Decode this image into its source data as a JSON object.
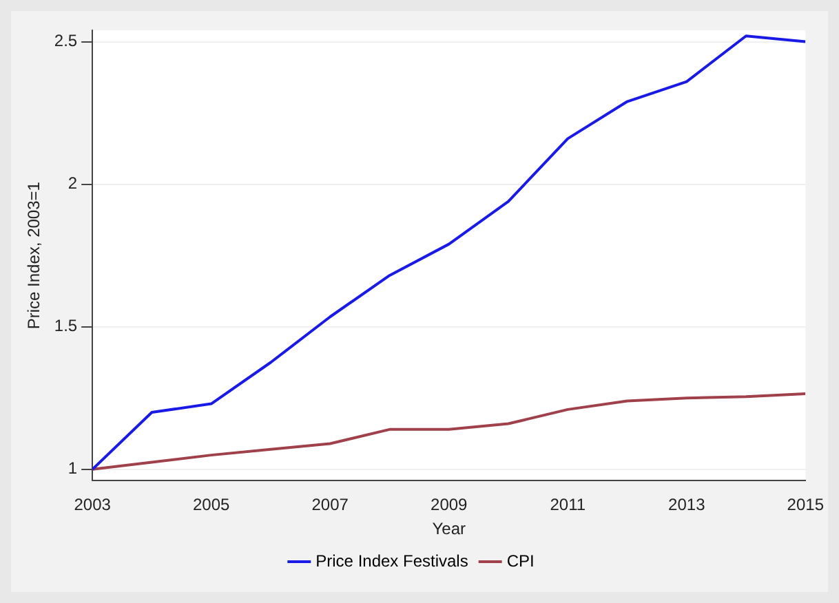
{
  "chart_data": {
    "type": "line",
    "xlabel": "Year",
    "ylabel": "Price Index, 2003=1",
    "x": [
      2003,
      2004,
      2005,
      2006,
      2007,
      2008,
      2009,
      2010,
      2011,
      2012,
      2013,
      2014,
      2015
    ],
    "series": [
      {
        "name": "Price Index Festivals",
        "color": "#1a1ae6",
        "values": [
          1.0,
          1.2,
          1.23,
          1.375,
          1.535,
          1.68,
          1.79,
          1.94,
          2.16,
          2.29,
          2.36,
          2.52,
          2.5
        ]
      },
      {
        "name": "CPI",
        "color": "#a0404a",
        "values": [
          1.0,
          1.025,
          1.05,
          1.07,
          1.09,
          1.14,
          1.14,
          1.16,
          1.21,
          1.24,
          1.25,
          1.255,
          1.265
        ]
      }
    ],
    "xlim": [
      2003,
      2015
    ],
    "xticks": [
      2003,
      2005,
      2007,
      2009,
      2011,
      2013,
      2015
    ],
    "ylim": [
      0.96,
      2.54
    ],
    "yticks": [
      1,
      1.5,
      2,
      2.5
    ],
    "grid": "y",
    "legend": "bottom",
    "marker": "none",
    "line_style": "solid"
  }
}
